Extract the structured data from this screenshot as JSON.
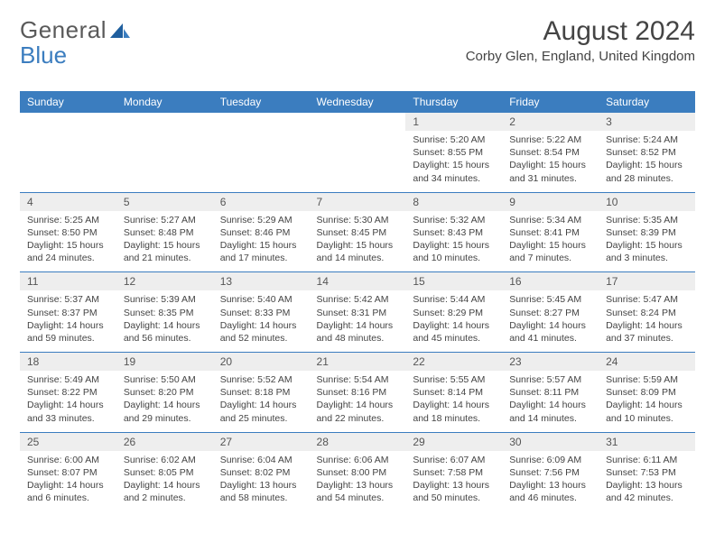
{
  "logo": {
    "word1": "General",
    "word2": "Blue"
  },
  "title": "August 2024",
  "location": "Corby Glen, England, United Kingdom",
  "colors": {
    "header_bg": "#3b7dbf",
    "header_text": "#ffffff",
    "daynum_bg": "#eeeeee",
    "rule": "#3b7dbf",
    "body_text": "#444444"
  },
  "day_names": [
    "Sunday",
    "Monday",
    "Tuesday",
    "Wednesday",
    "Thursday",
    "Friday",
    "Saturday"
  ],
  "weeks": [
    [
      null,
      null,
      null,
      null,
      {
        "n": "1",
        "sr": "Sunrise: 5:20 AM",
        "ss": "Sunset: 8:55 PM",
        "dl": "Daylight: 15 hours and 34 minutes."
      },
      {
        "n": "2",
        "sr": "Sunrise: 5:22 AM",
        "ss": "Sunset: 8:54 PM",
        "dl": "Daylight: 15 hours and 31 minutes."
      },
      {
        "n": "3",
        "sr": "Sunrise: 5:24 AM",
        "ss": "Sunset: 8:52 PM",
        "dl": "Daylight: 15 hours and 28 minutes."
      }
    ],
    [
      {
        "n": "4",
        "sr": "Sunrise: 5:25 AM",
        "ss": "Sunset: 8:50 PM",
        "dl": "Daylight: 15 hours and 24 minutes."
      },
      {
        "n": "5",
        "sr": "Sunrise: 5:27 AM",
        "ss": "Sunset: 8:48 PM",
        "dl": "Daylight: 15 hours and 21 minutes."
      },
      {
        "n": "6",
        "sr": "Sunrise: 5:29 AM",
        "ss": "Sunset: 8:46 PM",
        "dl": "Daylight: 15 hours and 17 minutes."
      },
      {
        "n": "7",
        "sr": "Sunrise: 5:30 AM",
        "ss": "Sunset: 8:45 PM",
        "dl": "Daylight: 15 hours and 14 minutes."
      },
      {
        "n": "8",
        "sr": "Sunrise: 5:32 AM",
        "ss": "Sunset: 8:43 PM",
        "dl": "Daylight: 15 hours and 10 minutes."
      },
      {
        "n": "9",
        "sr": "Sunrise: 5:34 AM",
        "ss": "Sunset: 8:41 PM",
        "dl": "Daylight: 15 hours and 7 minutes."
      },
      {
        "n": "10",
        "sr": "Sunrise: 5:35 AM",
        "ss": "Sunset: 8:39 PM",
        "dl": "Daylight: 15 hours and 3 minutes."
      }
    ],
    [
      {
        "n": "11",
        "sr": "Sunrise: 5:37 AM",
        "ss": "Sunset: 8:37 PM",
        "dl": "Daylight: 14 hours and 59 minutes."
      },
      {
        "n": "12",
        "sr": "Sunrise: 5:39 AM",
        "ss": "Sunset: 8:35 PM",
        "dl": "Daylight: 14 hours and 56 minutes."
      },
      {
        "n": "13",
        "sr": "Sunrise: 5:40 AM",
        "ss": "Sunset: 8:33 PM",
        "dl": "Daylight: 14 hours and 52 minutes."
      },
      {
        "n": "14",
        "sr": "Sunrise: 5:42 AM",
        "ss": "Sunset: 8:31 PM",
        "dl": "Daylight: 14 hours and 48 minutes."
      },
      {
        "n": "15",
        "sr": "Sunrise: 5:44 AM",
        "ss": "Sunset: 8:29 PM",
        "dl": "Daylight: 14 hours and 45 minutes."
      },
      {
        "n": "16",
        "sr": "Sunrise: 5:45 AM",
        "ss": "Sunset: 8:27 PM",
        "dl": "Daylight: 14 hours and 41 minutes."
      },
      {
        "n": "17",
        "sr": "Sunrise: 5:47 AM",
        "ss": "Sunset: 8:24 PM",
        "dl": "Daylight: 14 hours and 37 minutes."
      }
    ],
    [
      {
        "n": "18",
        "sr": "Sunrise: 5:49 AM",
        "ss": "Sunset: 8:22 PM",
        "dl": "Daylight: 14 hours and 33 minutes."
      },
      {
        "n": "19",
        "sr": "Sunrise: 5:50 AM",
        "ss": "Sunset: 8:20 PM",
        "dl": "Daylight: 14 hours and 29 minutes."
      },
      {
        "n": "20",
        "sr": "Sunrise: 5:52 AM",
        "ss": "Sunset: 8:18 PM",
        "dl": "Daylight: 14 hours and 25 minutes."
      },
      {
        "n": "21",
        "sr": "Sunrise: 5:54 AM",
        "ss": "Sunset: 8:16 PM",
        "dl": "Daylight: 14 hours and 22 minutes."
      },
      {
        "n": "22",
        "sr": "Sunrise: 5:55 AM",
        "ss": "Sunset: 8:14 PM",
        "dl": "Daylight: 14 hours and 18 minutes."
      },
      {
        "n": "23",
        "sr": "Sunrise: 5:57 AM",
        "ss": "Sunset: 8:11 PM",
        "dl": "Daylight: 14 hours and 14 minutes."
      },
      {
        "n": "24",
        "sr": "Sunrise: 5:59 AM",
        "ss": "Sunset: 8:09 PM",
        "dl": "Daylight: 14 hours and 10 minutes."
      }
    ],
    [
      {
        "n": "25",
        "sr": "Sunrise: 6:00 AM",
        "ss": "Sunset: 8:07 PM",
        "dl": "Daylight: 14 hours and 6 minutes."
      },
      {
        "n": "26",
        "sr": "Sunrise: 6:02 AM",
        "ss": "Sunset: 8:05 PM",
        "dl": "Daylight: 14 hours and 2 minutes."
      },
      {
        "n": "27",
        "sr": "Sunrise: 6:04 AM",
        "ss": "Sunset: 8:02 PM",
        "dl": "Daylight: 13 hours and 58 minutes."
      },
      {
        "n": "28",
        "sr": "Sunrise: 6:06 AM",
        "ss": "Sunset: 8:00 PM",
        "dl": "Daylight: 13 hours and 54 minutes."
      },
      {
        "n": "29",
        "sr": "Sunrise: 6:07 AM",
        "ss": "Sunset: 7:58 PM",
        "dl": "Daylight: 13 hours and 50 minutes."
      },
      {
        "n": "30",
        "sr": "Sunrise: 6:09 AM",
        "ss": "Sunset: 7:56 PM",
        "dl": "Daylight: 13 hours and 46 minutes."
      },
      {
        "n": "31",
        "sr": "Sunrise: 6:11 AM",
        "ss": "Sunset: 7:53 PM",
        "dl": "Daylight: 13 hours and 42 minutes."
      }
    ]
  ]
}
